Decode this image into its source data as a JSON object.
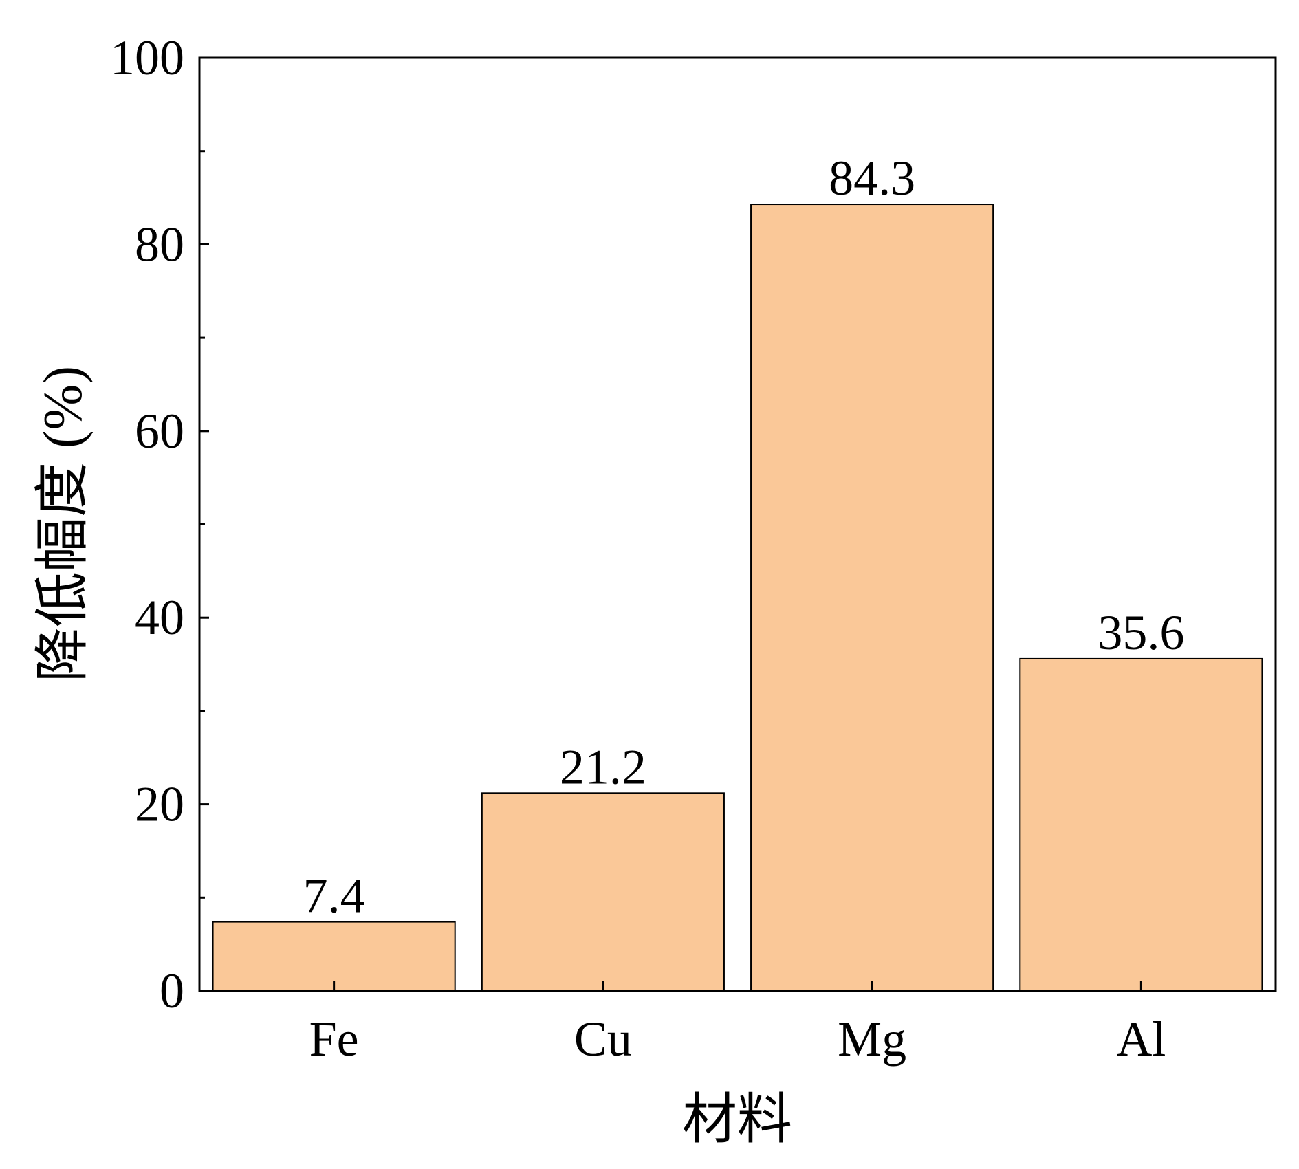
{
  "chart_data": {
    "type": "bar",
    "categories": [
      "Fe",
      "Cu",
      "Mg",
      "Al"
    ],
    "values": [
      7.4,
      21.2,
      84.3,
      35.6
    ],
    "data_labels": [
      "7.4",
      "21.2",
      "84.3",
      "35.6"
    ],
    "title": "",
    "xlabel": "材料",
    "ylabel": "降低幅度 (%)",
    "ylim": [
      0,
      100
    ],
    "yticks": [
      0,
      20,
      40,
      60,
      80,
      100
    ],
    "yminor_ticks": [
      10,
      30,
      50,
      70,
      90
    ],
    "grid": false,
    "bar_color": "#FAC898",
    "bar_edge_color": "#000000"
  }
}
